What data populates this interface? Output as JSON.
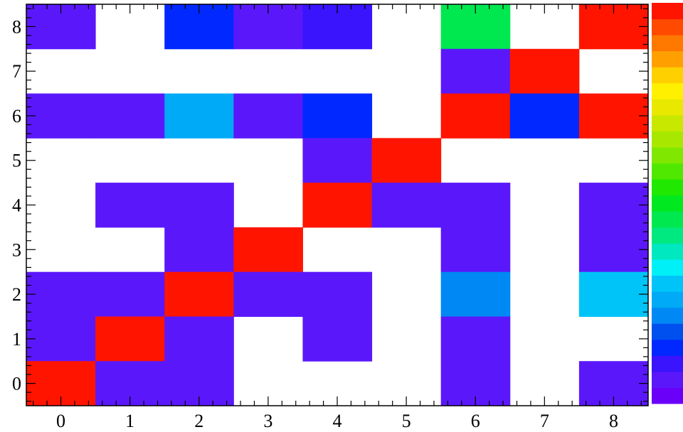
{
  "chart_data": {
    "type": "heatmap",
    "title": "",
    "xlabel": "",
    "ylabel": "",
    "x_categories": [
      "0",
      "1",
      "2",
      "3",
      "4",
      "5",
      "6",
      "7",
      "8"
    ],
    "y_categories": [
      "0",
      "1",
      "2",
      "3",
      "4",
      "5",
      "6",
      "7",
      "8"
    ],
    "xlim": [
      -0.5,
      8.5
    ],
    "ylim": [
      -0.5,
      8.5
    ],
    "grid": false,
    "legend": "right",
    "z_range": [
      0,
      1
    ],
    "palette": [
      "#6a00f8",
      "#5a18fa",
      "#3a14fd",
      "#0028ff",
      "#0050f0",
      "#0088f4",
      "#00aaf6",
      "#00c4f8",
      "#00f0f8",
      "#00e8c0",
      "#00e880",
      "#00e850",
      "#00e820",
      "#20e800",
      "#50e800",
      "#80e800",
      "#a8e800",
      "#c8e800",
      "#e8e800",
      "#fff000",
      "#ffd000",
      "#ffa000",
      "#ff7800",
      "#ff4a00",
      "#ff1400"
    ],
    "cells": [
      {
        "x": 0,
        "y": 8,
        "z": 0.05
      },
      {
        "x": 2,
        "y": 8,
        "z": 0.13
      },
      {
        "x": 3,
        "y": 8,
        "z": 0.05
      },
      {
        "x": 4,
        "y": 8,
        "z": 0.1
      },
      {
        "x": 6,
        "y": 8,
        "z": 0.45
      },
      {
        "x": 8,
        "y": 8,
        "z": 1.0
      },
      {
        "x": 6,
        "y": 7,
        "z": 0.05
      },
      {
        "x": 7,
        "y": 7,
        "z": 1.0
      },
      {
        "x": 0,
        "y": 6,
        "z": 0.08
      },
      {
        "x": 1,
        "y": 6,
        "z": 0.05
      },
      {
        "x": 2,
        "y": 6,
        "z": 0.26
      },
      {
        "x": 3,
        "y": 6,
        "z": 0.05
      },
      {
        "x": 4,
        "y": 6,
        "z": 0.13
      },
      {
        "x": 6,
        "y": 6,
        "z": 1.0
      },
      {
        "x": 7,
        "y": 6,
        "z": 0.13
      },
      {
        "x": 8,
        "y": 6,
        "z": 1.0
      },
      {
        "x": 4,
        "y": 5,
        "z": 0.05
      },
      {
        "x": 5,
        "y": 5,
        "z": 1.0
      },
      {
        "x": 1,
        "y": 4,
        "z": 0.05
      },
      {
        "x": 2,
        "y": 4,
        "z": 0.05
      },
      {
        "x": 4,
        "y": 4,
        "z": 1.0
      },
      {
        "x": 5,
        "y": 4,
        "z": 0.08
      },
      {
        "x": 6,
        "y": 4,
        "z": 0.05
      },
      {
        "x": 8,
        "y": 4,
        "z": 0.05
      },
      {
        "x": 2,
        "y": 3,
        "z": 0.05
      },
      {
        "x": 3,
        "y": 3,
        "z": 1.0
      },
      {
        "x": 6,
        "y": 3,
        "z": 0.05
      },
      {
        "x": 8,
        "y": 3,
        "z": 0.05
      },
      {
        "x": 0,
        "y": 2,
        "z": 0.05
      },
      {
        "x": 1,
        "y": 2,
        "z": 0.08
      },
      {
        "x": 2,
        "y": 2,
        "z": 1.0
      },
      {
        "x": 3,
        "y": 2,
        "z": 0.05
      },
      {
        "x": 4,
        "y": 2,
        "z": 0.08
      },
      {
        "x": 6,
        "y": 2,
        "z": 0.22
      },
      {
        "x": 8,
        "y": 2,
        "z": 0.3
      },
      {
        "x": 0,
        "y": 1,
        "z": 0.05
      },
      {
        "x": 1,
        "y": 1,
        "z": 1.0
      },
      {
        "x": 2,
        "y": 1,
        "z": 0.05
      },
      {
        "x": 4,
        "y": 1,
        "z": 0.05
      },
      {
        "x": 6,
        "y": 1,
        "z": 0.05
      },
      {
        "x": 0,
        "y": 0,
        "z": 1.0
      },
      {
        "x": 1,
        "y": 0,
        "z": 0.05
      },
      {
        "x": 2,
        "y": 0,
        "z": 0.05
      },
      {
        "x": 6,
        "y": 0,
        "z": 0.05
      },
      {
        "x": 8,
        "y": 0,
        "z": 0.05
      }
    ]
  }
}
